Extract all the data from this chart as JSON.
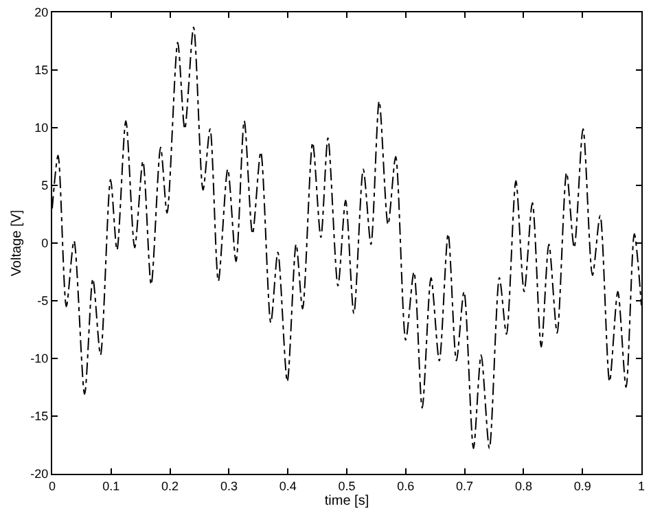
{
  "chart_data": {
    "type": "line",
    "xlabel": "time [s]",
    "ylabel": "Voltage [V]",
    "x": [
      0,
      0.01,
      0.024,
      0.037,
      0.055,
      0.069,
      0.082,
      0.099,
      0.11,
      0.125,
      0.14,
      0.154,
      0.168,
      0.184,
      0.195,
      0.213,
      0.225,
      0.24,
      0.256,
      0.268,
      0.282,
      0.298,
      0.312,
      0.326,
      0.34,
      0.354,
      0.371,
      0.383,
      0.399,
      0.414,
      0.425,
      0.442,
      0.456,
      0.468,
      0.485,
      0.498,
      0.512,
      0.528,
      0.541,
      0.555,
      0.57,
      0.583,
      0.6,
      0.614,
      0.628,
      0.643,
      0.657,
      0.672,
      0.686,
      0.699,
      0.715,
      0.728,
      0.742,
      0.759,
      0.771,
      0.787,
      0.801,
      0.815,
      0.83,
      0.843,
      0.857,
      0.873,
      0.886,
      0.901,
      0.917,
      0.93,
      0.946,
      0.96,
      0.974,
      0.988,
      1.0
    ],
    "series": [
      {
        "color": "#000000",
        "values": [
          3.0,
          7.6,
          -5.5,
          0.2,
          -13.1,
          -3.1,
          -9.7,
          5.5,
          -0.6,
          10.6,
          -0.4,
          7.1,
          -3.6,
          8.3,
          2.6,
          17.4,
          9.9,
          18.7,
          4.6,
          9.9,
          -3.3,
          6.4,
          -1.6,
          10.6,
          0.8,
          7.9,
          -6.9,
          -0.8,
          -12.0,
          -0.1,
          -5.7,
          8.7,
          0.5,
          9.1,
          -3.7,
          3.7,
          -6.1,
          6.4,
          -0.1,
          12.3,
          1.6,
          7.5,
          -8.4,
          -2.5,
          -14.3,
          -3.0,
          -10.2,
          0.8,
          -10.2,
          -4.2,
          -17.8,
          -9.7,
          -17.8,
          -3.0,
          -7.9,
          5.4,
          -4.2,
          3.5,
          -9.0,
          -0.1,
          -7.8,
          6.1,
          -0.4,
          9.9,
          -2.8,
          2.4,
          -12.0,
          -4.2,
          -12.5,
          0.8,
          -5.4
        ]
      }
    ],
    "xlim": [
      0,
      1
    ],
    "xticks": [
      0,
      0.1,
      0.2,
      0.3,
      0.4,
      0.5,
      0.6,
      0.7,
      0.8,
      0.9,
      1
    ],
    "ylim": [
      -20,
      20
    ],
    "yticks": [
      -20,
      -15,
      -10,
      -5,
      0,
      5,
      10,
      15,
      20
    ],
    "marker": "none",
    "line_style": "dashdot"
  }
}
